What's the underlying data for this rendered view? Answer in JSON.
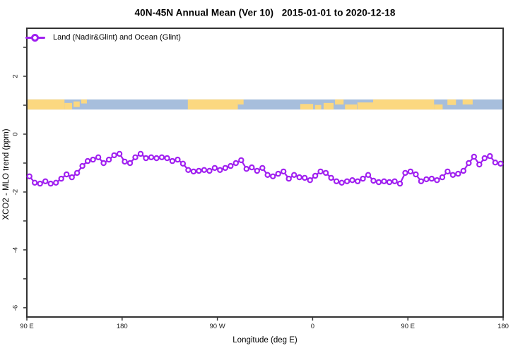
{
  "page": {
    "background": "#ffffff"
  },
  "colors": {
    "axis": "#333333",
    "text": "#000000",
    "series_purple": "#a020f0",
    "marker_fill": "#ffffff",
    "map_land_yellow": "#fbd880",
    "map_ocean_blue": "#a7bedc"
  },
  "chart_data": {
    "type": "line",
    "title": "40N-45N Annual Mean (Ver 10)   2015-01-01 to 2020-12-18",
    "xlabel": "Longitude (deg E)",
    "ylabel": "XCO2 - MLO trend (ppm)",
    "legend": {
      "position": "top-left",
      "entries": [
        {
          "label": "Land (Nadir&Glint) and Ocean (Glint)",
          "color": "#a020f0",
          "marker": "open-circle"
        }
      ]
    },
    "grid": false,
    "x_axis": {
      "range_deg_along_axis": [
        90,
        540
      ],
      "tick_positions_deg": [
        90,
        180,
        270,
        360,
        450,
        540
      ],
      "tick_labels": [
        "90 E",
        "180",
        "90 W",
        "0",
        "90 E",
        "180"
      ],
      "wrap_note": "longitude runs eastward and wraps: 90E to 180 to 90W to 0 to 90E to 180"
    },
    "y_axis": {
      "range": [
        -6.32,
        3.66
      ],
      "major_tick_values": [
        2,
        0,
        -2,
        -4,
        -6
      ],
      "major_tick_labels": [
        "2",
        "0",
        "-2",
        "-4",
        "-6"
      ],
      "minor_tick_values": [
        3,
        2,
        1,
        0,
        -1,
        -2,
        -3,
        -4,
        -5,
        -6
      ],
      "labels_rotated": true
    },
    "map_strip": {
      "description": "coastline band for latitude 40N-45N drawn across the plot",
      "y_top_value": 1.2,
      "y_bottom_value": 0.85,
      "ocean_color": "#a7bedc",
      "land_color": "#fbd880",
      "land_segments_frac": [
        {
          "x": 0.0,
          "w": 0.079,
          "y0": 0.0,
          "y1": 1.0
        },
        {
          "x": 0.079,
          "w": 0.016,
          "y0": 0.35,
          "y1": 1.0
        },
        {
          "x": 0.098,
          "w": 0.013,
          "y0": 0.2,
          "y1": 0.75
        },
        {
          "x": 0.114,
          "w": 0.012,
          "y0": 0.0,
          "y1": 0.4
        },
        {
          "x": 0.338,
          "w": 0.105,
          "y0": 0.0,
          "y1": 1.0
        },
        {
          "x": 0.443,
          "w": 0.012,
          "y0": 0.0,
          "y1": 0.5
        },
        {
          "x": 0.574,
          "w": 0.027,
          "y0": 0.45,
          "y1": 1.0
        },
        {
          "x": 0.605,
          "w": 0.013,
          "y0": 0.55,
          "y1": 1.0
        },
        {
          "x": 0.623,
          "w": 0.021,
          "y0": 0.35,
          "y1": 1.0
        },
        {
          "x": 0.647,
          "w": 0.018,
          "y0": 0.0,
          "y1": 0.5
        },
        {
          "x": 0.668,
          "w": 0.025,
          "y0": 0.5,
          "y1": 1.0
        },
        {
          "x": 0.694,
          "w": 0.033,
          "y0": 0.3,
          "y1": 1.0
        },
        {
          "x": 0.727,
          "w": 0.128,
          "y0": 0.0,
          "y1": 1.0
        },
        {
          "x": 0.855,
          "w": 0.018,
          "y0": 0.5,
          "y1": 1.0
        },
        {
          "x": 0.883,
          "w": 0.018,
          "y0": 0.0,
          "y1": 0.55
        },
        {
          "x": 0.915,
          "w": 0.021,
          "y0": 0.0,
          "y1": 0.5
        }
      ]
    },
    "series": [
      {
        "name": "Land (Nadir&Glint) and Ocean (Glint)",
        "color": "#a020f0",
        "marker": "open-circle",
        "x_start_deg": 92.5,
        "x_step_deg": 5,
        "values": [
          -1.46,
          -1.68,
          -1.71,
          -1.63,
          -1.71,
          -1.68,
          -1.54,
          -1.39,
          -1.49,
          -1.34,
          -1.1,
          -0.93,
          -0.88,
          -0.8,
          -1.0,
          -0.88,
          -0.73,
          -0.68,
          -0.95,
          -1.0,
          -0.8,
          -0.68,
          -0.83,
          -0.8,
          -0.83,
          -0.8,
          -0.83,
          -0.93,
          -0.88,
          -1.02,
          -1.24,
          -1.29,
          -1.27,
          -1.24,
          -1.27,
          -1.17,
          -1.24,
          -1.17,
          -1.1,
          -1.0,
          -0.9,
          -1.2,
          -1.15,
          -1.27,
          -1.17,
          -1.41,
          -1.46,
          -1.37,
          -1.29,
          -1.54,
          -1.41,
          -1.49,
          -1.51,
          -1.59,
          -1.44,
          -1.29,
          -1.34,
          -1.51,
          -1.63,
          -1.68,
          -1.63,
          -1.59,
          -1.63,
          -1.54,
          -1.41,
          -1.61,
          -1.66,
          -1.63,
          -1.66,
          -1.63,
          -1.71,
          -1.34,
          -1.29,
          -1.39,
          -1.63,
          -1.56,
          -1.54,
          -1.59,
          -1.49,
          -1.29,
          -1.41,
          -1.37,
          -1.27,
          -1.0,
          -0.78,
          -1.05,
          -0.83,
          -0.76,
          -0.98,
          -1.02
        ]
      }
    ]
  }
}
